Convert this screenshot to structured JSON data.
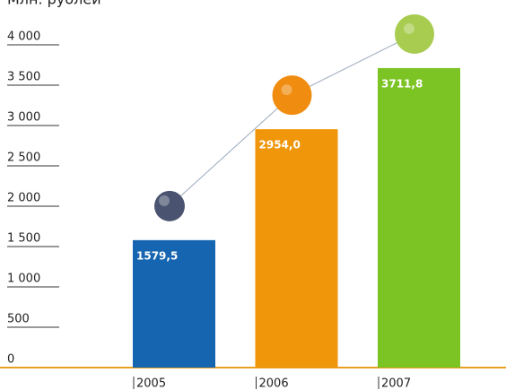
{
  "chart_data": {
    "type": "bar",
    "y_axis_label": "Млн. рублей",
    "categories": [
      "2005",
      "2006",
      "2007"
    ],
    "values": [
      1579.5,
      2954.0,
      3711.8
    ],
    "value_labels": [
      "1579,5",
      "2954,0",
      "3711,8"
    ],
    "colors": [
      "#1565b0",
      "#f0960a",
      "#7cc324"
    ],
    "ylim": [
      0,
      4000
    ],
    "yticks": [
      0,
      500,
      {
        "value": 1000,
        "label": "1 000"
      },
      {
        "value": 1500,
        "label": "1 500"
      },
      {
        "value": 2000,
        "label": "2 000"
      },
      {
        "value": 2500,
        "label": "2 500"
      },
      {
        "value": 3000,
        "label": "3 000"
      },
      {
        "value": 3500,
        "label": "3 500"
      },
      {
        "value": 4000,
        "label": "4 000"
      }
    ],
    "axis_color": "#e8a020"
  }
}
